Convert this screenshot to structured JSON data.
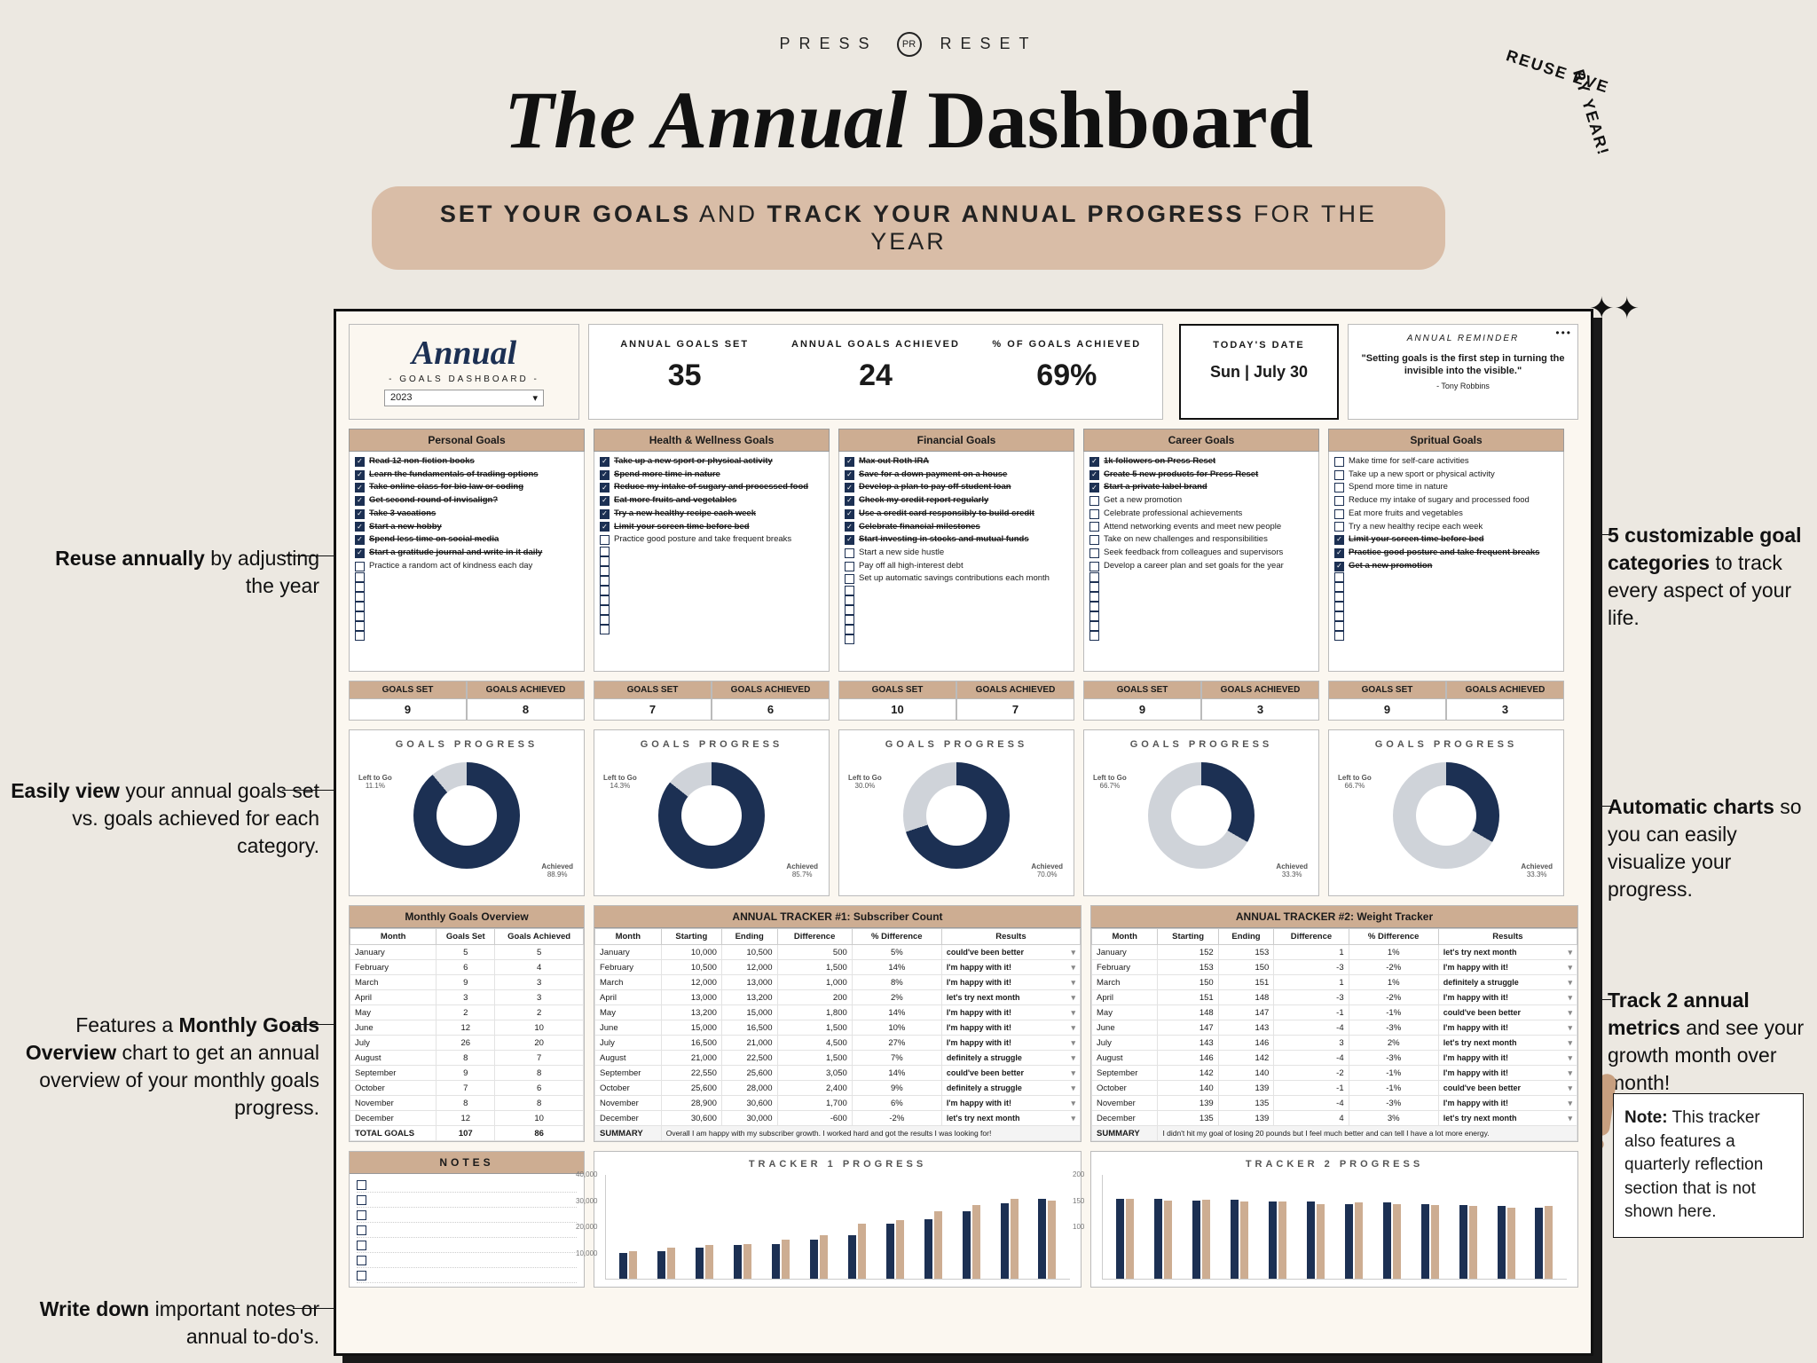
{
  "brand": {
    "left": "PRESS",
    "right": "RESET",
    "mono": "PR"
  },
  "hero": {
    "ital": "The Annual ",
    "bold": "Dashboard"
  },
  "reuse": {
    "a": "REUSE EVE",
    "b": "RY YEAR!"
  },
  "subtitle": {
    "a": "SET YOUR GOALS",
    "mid": " AND ",
    "b": "TRACK YOUR ANNUAL PROGRESS",
    "tail": " FOR THE YEAR"
  },
  "colors": {
    "navy": "#1c3053",
    "tan": "#cdad92",
    "grey": "#cfd3d9",
    "bg": "#fbf7f0"
  },
  "annual_title": {
    "t": "Annual",
    "st": "- GOALS DASHBOARD -",
    "year": "2023"
  },
  "stats": [
    {
      "label": "ANNUAL GOALS SET",
      "value": "35"
    },
    {
      "label": "ANNUAL GOALS ACHIEVED",
      "value": "24"
    },
    {
      "label": "% OF GOALS ACHIEVED",
      "value": "69%"
    }
  ],
  "date": {
    "label": "TODAY'S DATE",
    "value": "Sun |  July 30"
  },
  "reminder": {
    "label": "ANNUAL REMINDER",
    "quote": "\"Setting goals is the first step in turning the invisible into the visible.\"",
    "author": "- Tony Robbins"
  },
  "goal_columns": [
    {
      "title": "Personal Goals",
      "set": 9,
      "ach": 8,
      "pct": 88.9,
      "items": [
        {
          "t": "Read 12 non-fiction books",
          "c": true,
          "d": true,
          "b": true
        },
        {
          "t": "Learn the fundamentals of trading options",
          "c": true,
          "d": true,
          "b": true
        },
        {
          "t": "Take online class for bio law or coding",
          "c": true,
          "d": true,
          "b": true
        },
        {
          "t": "Get second round of invisalign?",
          "c": true,
          "d": true,
          "b": true
        },
        {
          "t": "Take 3 vacations",
          "c": true,
          "d": true,
          "b": true
        },
        {
          "t": "Start a new hobby",
          "c": true,
          "d": true,
          "b": true
        },
        {
          "t": "Spend less time on social media",
          "c": true,
          "d": true,
          "b": true
        },
        {
          "t": "Start a gratitude journal and write in it daily",
          "c": true,
          "d": true,
          "b": true
        },
        {
          "t": "Practice a random act of kindness each day",
          "c": false,
          "d": false,
          "b": false
        }
      ]
    },
    {
      "title": "Health & Wellness Goals",
      "set": 7,
      "ach": 6,
      "pct": 85.7,
      "items": [
        {
          "t": "Take up a new sport or physical activity",
          "c": true,
          "d": true,
          "b": true
        },
        {
          "t": "Spend more time in nature",
          "c": true,
          "d": true,
          "b": true
        },
        {
          "t": "Reduce my intake of sugary and processed food",
          "c": true,
          "d": true,
          "b": true
        },
        {
          "t": "Eat more fruits and vegetables",
          "c": true,
          "d": true,
          "b": true
        },
        {
          "t": "Try a new healthy recipe each week",
          "c": true,
          "d": true,
          "b": true
        },
        {
          "t": "Limit your screen time before bed",
          "c": true,
          "d": true,
          "b": true
        },
        {
          "t": "Practice good posture and take frequent breaks",
          "c": false,
          "d": false,
          "b": false
        }
      ]
    },
    {
      "title": "Financial Goals",
      "set": 10,
      "ach": 7,
      "pct": 70.0,
      "items": [
        {
          "t": "Max out Roth IRA",
          "c": true,
          "d": true,
          "b": true
        },
        {
          "t": "Save for a down payment on a house",
          "c": true,
          "d": true,
          "b": true
        },
        {
          "t": "Develop a plan to pay off student loan",
          "c": true,
          "d": true,
          "b": true
        },
        {
          "t": "Check my credit report regularly",
          "c": true,
          "d": true,
          "b": true
        },
        {
          "t": "Use a credit card responsibly to build credit",
          "c": true,
          "d": true,
          "b": true
        },
        {
          "t": "Celebrate financial milestones",
          "c": true,
          "d": true,
          "b": true
        },
        {
          "t": "Start investing in stocks and mutual funds",
          "c": true,
          "d": true,
          "b": true
        },
        {
          "t": "Start a new side hustle",
          "c": false,
          "d": false,
          "b": false
        },
        {
          "t": "Pay off all high-interest debt",
          "c": false,
          "d": false,
          "b": false
        },
        {
          "t": "Set up automatic savings contributions each month",
          "c": false,
          "d": false,
          "b": false
        }
      ]
    },
    {
      "title": "Career Goals",
      "set": 9,
      "ach": 3,
      "pct": 33.3,
      "items": [
        {
          "t": "1k followers on Press Reset",
          "c": true,
          "d": true,
          "b": true
        },
        {
          "t": "Create 5 new products for Press Reset",
          "c": true,
          "d": true,
          "b": true
        },
        {
          "t": "Start a private label brand",
          "c": true,
          "d": true,
          "b": true
        },
        {
          "t": "Get a new promotion",
          "c": false,
          "d": false,
          "b": false
        },
        {
          "t": "Celebrate professional achievements",
          "c": false,
          "d": false,
          "b": false
        },
        {
          "t": "Attend networking events and meet new people",
          "c": false,
          "d": false,
          "b": false
        },
        {
          "t": "Take on new challenges and responsibilities",
          "c": false,
          "d": false,
          "b": false
        },
        {
          "t": "Seek feedback from colleagues and supervisors",
          "c": false,
          "d": false,
          "b": false
        },
        {
          "t": "Develop a career plan and set goals for the year",
          "c": false,
          "d": false,
          "b": false
        }
      ]
    },
    {
      "title": "Spritual Goals",
      "set": 9,
      "ach": 3,
      "pct": 33.3,
      "items": [
        {
          "t": "Make time for self-care activities",
          "c": false,
          "d": false,
          "b": false
        },
        {
          "t": "Take up a new sport or physical activity",
          "c": false,
          "d": false,
          "b": false
        },
        {
          "t": "Spend more time in nature",
          "c": false,
          "d": false,
          "b": false
        },
        {
          "t": "Reduce my intake of sugary and processed food",
          "c": false,
          "d": false,
          "b": false
        },
        {
          "t": "Eat more fruits and vegetables",
          "c": false,
          "d": false,
          "b": false
        },
        {
          "t": "Try a new healthy recipe each week",
          "c": false,
          "d": false,
          "b": false
        },
        {
          "t": "Limit your screen time before bed",
          "c": true,
          "d": true,
          "b": true
        },
        {
          "t": "Practice good posture and take frequent breaks",
          "c": true,
          "d": true,
          "b": true
        },
        {
          "t": "Get a new promotion",
          "c": true,
          "d": true,
          "b": true
        }
      ]
    }
  ],
  "count_labels": {
    "set": "GOALS SET",
    "ach": "GOALS ACHIEVED"
  },
  "donut_title": "GOALS PROGRESS",
  "donut_labels": {
    "left": "Left to Go",
    "ach": "Achieved"
  },
  "mgo": {
    "title": "Monthly Goals Overview",
    "cols": [
      "Month",
      "Goals Set",
      "Goals Achieved"
    ],
    "rows": [
      [
        "January",
        "5",
        "5"
      ],
      [
        "February",
        "6",
        "4"
      ],
      [
        "March",
        "9",
        "3"
      ],
      [
        "April",
        "3",
        "3"
      ],
      [
        "May",
        "2",
        "2"
      ],
      [
        "June",
        "12",
        "10"
      ],
      [
        "July",
        "26",
        "20"
      ],
      [
        "August",
        "8",
        "7"
      ],
      [
        "September",
        "9",
        "8"
      ],
      [
        "October",
        "7",
        "6"
      ],
      [
        "November",
        "8",
        "8"
      ],
      [
        "December",
        "12",
        "10"
      ]
    ],
    "total": [
      "TOTAL GOALS",
      "107",
      "86"
    ]
  },
  "tracker1": {
    "title": "ANNUAL TRACKER #1:  Subscriber Count",
    "cols": [
      "Month",
      "Starting",
      "Ending",
      "Difference",
      "% Difference",
      "Results"
    ],
    "rows": [
      [
        "January",
        "10,000",
        "10,500",
        "500",
        "5%",
        "could've been better"
      ],
      [
        "February",
        "10,500",
        "12,000",
        "1,500",
        "14%",
        "I'm happy with it!"
      ],
      [
        "March",
        "12,000",
        "13,000",
        "1,000",
        "8%",
        "I'm happy with it!"
      ],
      [
        "April",
        "13,000",
        "13,200",
        "200",
        "2%",
        "let's try next month"
      ],
      [
        "May",
        "13,200",
        "15,000",
        "1,800",
        "14%",
        "I'm happy with it!"
      ],
      [
        "June",
        "15,000",
        "16,500",
        "1,500",
        "10%",
        "I'm happy with it!"
      ],
      [
        "July",
        "16,500",
        "21,000",
        "4,500",
        "27%",
        "I'm happy with it!"
      ],
      [
        "August",
        "21,000",
        "22,500",
        "1,500",
        "7%",
        "definitely a struggle"
      ],
      [
        "September",
        "22,550",
        "25,600",
        "3,050",
        "14%",
        "could've been better"
      ],
      [
        "October",
        "25,600",
        "28,000",
        "2,400",
        "9%",
        "definitely a struggle"
      ],
      [
        "November",
        "28,900",
        "30,600",
        "1,700",
        "6%",
        "I'm happy with it!"
      ],
      [
        "December",
        "30,600",
        "30,000",
        "-600",
        "-2%",
        "let's try next month"
      ]
    ],
    "summary": [
      "SUMMARY",
      "Overall I am happy with my subscriber growth. I worked hard and got the results I was looking for!"
    ]
  },
  "tracker2": {
    "title": "ANNUAL TRACKER #2:  Weight Tracker",
    "cols": [
      "Month",
      "Starting",
      "Ending",
      "Difference",
      "% Difference",
      "Results"
    ],
    "rows": [
      [
        "January",
        "152",
        "153",
        "1",
        "1%",
        "let's try next month"
      ],
      [
        "February",
        "153",
        "150",
        "-3",
        "-2%",
        "I'm happy with it!"
      ],
      [
        "March",
        "150",
        "151",
        "1",
        "1%",
        "definitely a struggle"
      ],
      [
        "April",
        "151",
        "148",
        "-3",
        "-2%",
        "I'm happy with it!"
      ],
      [
        "May",
        "148",
        "147",
        "-1",
        "-1%",
        "could've been better"
      ],
      [
        "June",
        "147",
        "143",
        "-4",
        "-3%",
        "I'm happy with it!"
      ],
      [
        "July",
        "143",
        "146",
        "3",
        "2%",
        "let's try next month"
      ],
      [
        "August",
        "146",
        "142",
        "-4",
        "-3%",
        "I'm happy with it!"
      ],
      [
        "September",
        "142",
        "140",
        "-2",
        "-1%",
        "I'm happy with it!"
      ],
      [
        "October",
        "140",
        "139",
        "-1",
        "-1%",
        "could've been better"
      ],
      [
        "November",
        "139",
        "135",
        "-4",
        "-3%",
        "I'm happy with it!"
      ],
      [
        "December",
        "135",
        "139",
        "4",
        "3%",
        "let's try next month"
      ]
    ],
    "summary": [
      "SUMMARY",
      "I didn't hit my goal of losing 20 pounds but I feel much better and can tell I have a lot more energy."
    ]
  },
  "notes_title": "NOTES",
  "chart1": {
    "title": "TRACKER 1 PROGRESS",
    "ylabels": [
      "40,000",
      "30,000",
      "20,000",
      "10,000"
    ],
    "max": 40000,
    "pairs": [
      [
        10000,
        10500
      ],
      [
        10500,
        12000
      ],
      [
        12000,
        13000
      ],
      [
        13000,
        13200
      ],
      [
        13200,
        15000
      ],
      [
        15000,
        16500
      ],
      [
        16500,
        21000
      ],
      [
        21000,
        22500
      ],
      [
        22550,
        25600
      ],
      [
        25600,
        28000
      ],
      [
        28900,
        30600
      ],
      [
        30600,
        30000
      ]
    ]
  },
  "chart2": {
    "title": "TRACKER 2 PROGRESS",
    "ylabels": [
      "200",
      "150",
      "100"
    ],
    "max": 200,
    "pairs": [
      [
        152,
        153
      ],
      [
        153,
        150
      ],
      [
        150,
        151
      ],
      [
        151,
        148
      ],
      [
        148,
        147
      ],
      [
        147,
        143
      ],
      [
        143,
        146
      ],
      [
        146,
        142
      ],
      [
        142,
        140
      ],
      [
        140,
        139
      ],
      [
        139,
        135
      ],
      [
        135,
        139
      ]
    ]
  },
  "annotations": {
    "reuse": "Reuse annually by adjusting the year",
    "easily": "Easily view your annual goals set vs. goals achieved for each category.",
    "monthly": "Features a Monthly Goals Overview chart to get an annual overview of your monthly goals progress.",
    "writenotes": "Write down important notes or annual to-do's.",
    "cats": "5 customizable goal categories to track every aspect of your life.",
    "charts": "Automatic charts so you can easily visualize your progress.",
    "metrics": "Track 2 annual metrics and see your growth month over month!",
    "note": "Note: This tracker also features a quarterly reflection section that is not shown here."
  }
}
